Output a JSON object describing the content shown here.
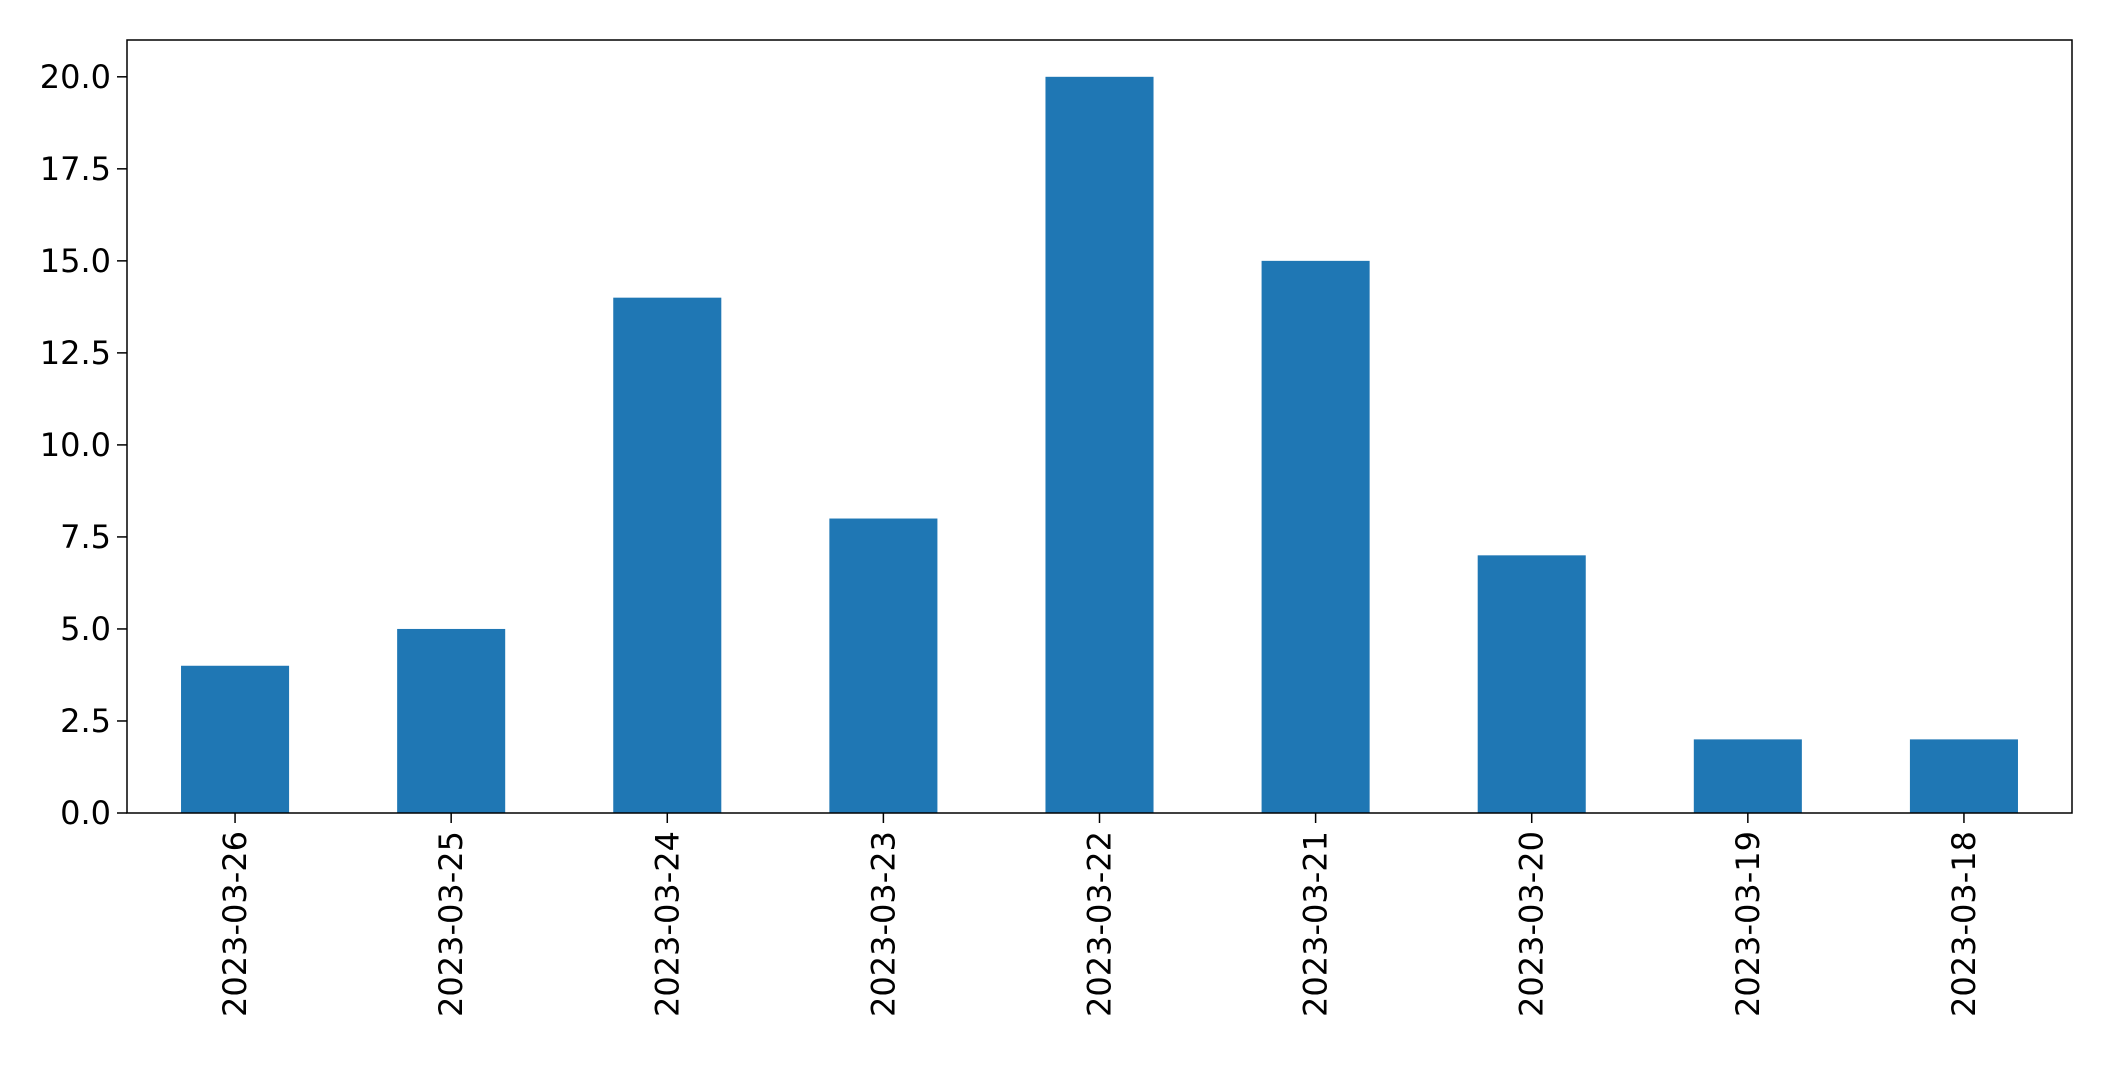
{
  "chart_data": {
    "type": "bar",
    "title": "",
    "xlabel": "",
    "ylabel": "",
    "categories": [
      "2023-03-26",
      "2023-03-25",
      "2023-03-24",
      "2023-03-23",
      "2023-03-22",
      "2023-03-21",
      "2023-03-20",
      "2023-03-19",
      "2023-03-18"
    ],
    "values": [
      4,
      5,
      14,
      8,
      20,
      15,
      7,
      2,
      2
    ],
    "ylim": [
      0,
      21
    ],
    "yticks": [
      "0.0",
      "2.5",
      "5.0",
      "7.5",
      "10.0",
      "12.5",
      "15.0",
      "17.5",
      "20.0"
    ],
    "bar_color": "#1f77b4",
    "grid": false,
    "legend": "none"
  }
}
